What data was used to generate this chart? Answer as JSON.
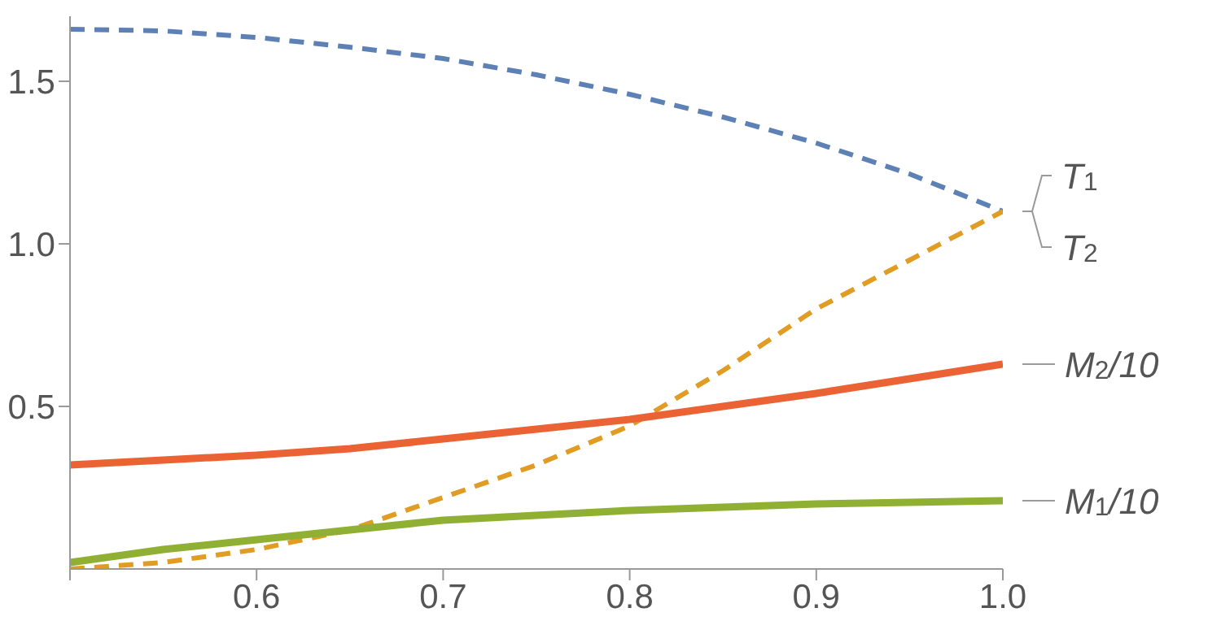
{
  "chart_data": {
    "type": "line",
    "x": [
      0.5,
      0.55,
      0.6,
      0.65,
      0.7,
      0.75,
      0.8,
      0.85,
      0.9,
      0.95,
      1.0
    ],
    "xlim": [
      0.5,
      1.0
    ],
    "xticks": [
      {
        "value": 0.5,
        "label": null
      },
      0.6,
      0.7,
      0.8,
      0.9,
      {
        "value": 1.0,
        "label": "1.0"
      }
    ],
    "ylim": [
      0,
      1.7
    ],
    "yticks": [
      {
        "value": 0.5,
        "label": "0.5"
      },
      {
        "value": 1.0,
        "label": "1.0"
      },
      {
        "value": 1.5,
        "label": "1.5"
      }
    ],
    "grid": false,
    "legend": false,
    "marker": "none",
    "series": [
      {
        "name": "T$_{1}$",
        "color": "#5e81b5",
        "line_style": "dashed",
        "values": [
          1.66,
          1.655,
          1.635,
          1.605,
          1.57,
          1.52,
          1.46,
          1.39,
          1.31,
          1.215,
          1.1
        ]
      },
      {
        "name": "T$_{2}$",
        "color": "#e19c24",
        "line_style": "dashed",
        "values": [
          0,
          0.02,
          0.06,
          0.12,
          0.22,
          0.32,
          0.44,
          0.61,
          0.8,
          0.95,
          1.1
        ]
      },
      {
        "name": "M$_{2}$/10",
        "color": "#eb6235",
        "line_style": "solid",
        "values": [
          0.32,
          0.335,
          0.35,
          0.37,
          0.4,
          0.43,
          0.46,
          0.5,
          0.54,
          0.585,
          0.63
        ]
      },
      {
        "name": "M$_{1}$/10",
        "color": "#8fb032",
        "line_style": "solid",
        "values": [
          0.02,
          0.06,
          0.09,
          0.12,
          0.15,
          0.165,
          0.18,
          0.19,
          0.2,
          0.205,
          0.21
        ]
      }
    ]
  }
}
